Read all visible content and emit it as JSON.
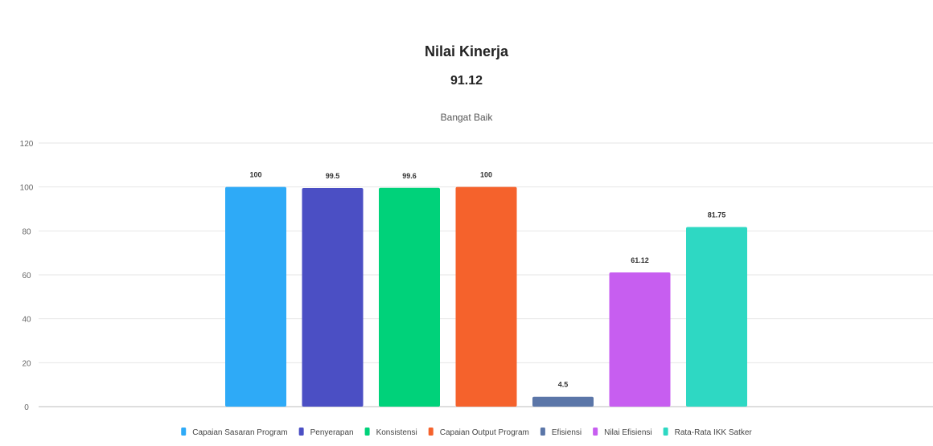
{
  "chart_data": {
    "type": "bar",
    "title": "Nilai Kinerja",
    "value_text": "91.12",
    "subtitle": "Bangat Baik",
    "ylim": [
      0,
      120
    ],
    "yticks": [
      0,
      20,
      40,
      60,
      80,
      100,
      120
    ],
    "grid": true,
    "legend_position": "bottom",
    "categories": [
      "Capaian Sasaran Program",
      "Penyerapan",
      "Konsistensi",
      "Capaian Output Program",
      "Efisiensi",
      "Nilai Efisiensi",
      "Rata-Rata IKK Satker"
    ],
    "values": [
      100,
      99.5,
      99.6,
      100,
      4.5,
      61.12,
      81.75
    ],
    "data_labels": [
      "100",
      "99.5",
      "99.6",
      "100",
      "4.5",
      "61.12",
      "81.75"
    ],
    "colors": [
      "#2eaaf7",
      "#4b4fc4",
      "#00d27a",
      "#f5622c",
      "#5b76a8",
      "#c75ef0",
      "#2ed8c3"
    ]
  }
}
